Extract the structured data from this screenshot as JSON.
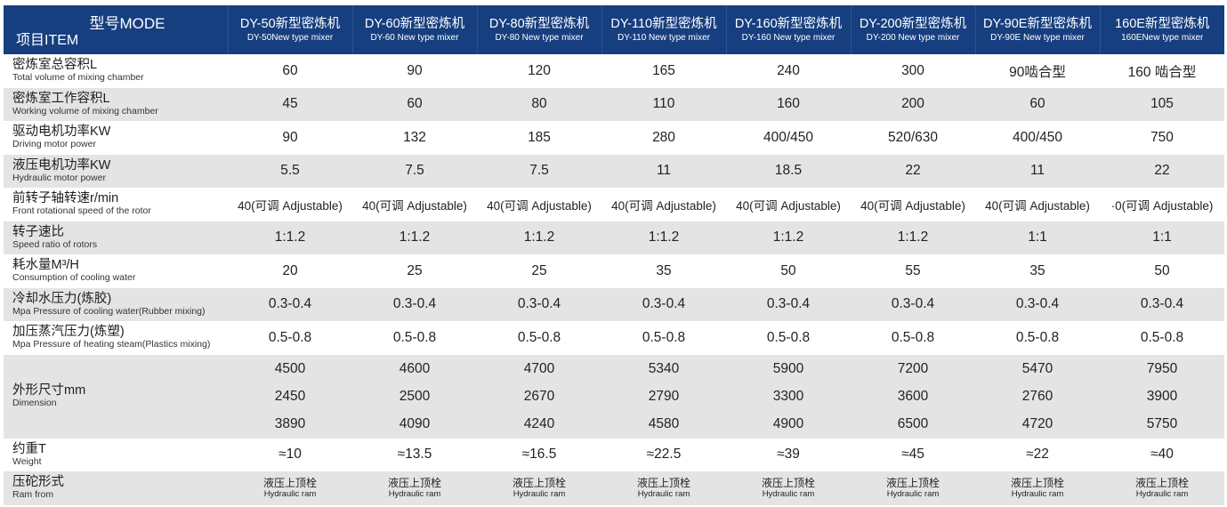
{
  "header": {
    "mode_label": "型号MODE",
    "item_label": "项目ITEM",
    "models": [
      {
        "cn": "DY-50新型密炼机",
        "en": "DY-50New type mixer"
      },
      {
        "cn": "DY-60新型密炼机",
        "en": "DY-60 New type mixer"
      },
      {
        "cn": "DY-80新型密炼机",
        "en": "DY-80 New type mixer"
      },
      {
        "cn": "DY-110新型密炼机",
        "en": "DY-110 New type mixer"
      },
      {
        "cn": "DY-160新型密炼机",
        "en": "DY-160 New type mixer"
      },
      {
        "cn": "DY-200新型密炼机",
        "en": "DY-200 New type mixer"
      },
      {
        "cn": "DY-90E新型密炼机",
        "en": "DY-90E New type mixer"
      },
      {
        "cn": "160E新型密炼机",
        "en": "160ENew type mixer"
      }
    ]
  },
  "rows": [
    {
      "cn": "密炼室总容积L",
      "en": "Total volume of mixing chamber",
      "values": [
        "60",
        "90",
        "120",
        "165",
        "240",
        "300",
        "90啮合型",
        "160 啮合型"
      ]
    },
    {
      "cn": "密炼室工作容积L",
      "en": "Working volume of mixing chamber",
      "values": [
        "45",
        "60",
        "80",
        "110",
        "160",
        "200",
        "60",
        "105"
      ]
    },
    {
      "cn": "驱动电机功率KW",
      "en": "Driving motor power",
      "values": [
        "90",
        "132",
        "185",
        "280",
        "400/450",
        "520/630",
        "400/450",
        "750"
      ]
    },
    {
      "cn": "液压电机功率KW",
      "en": "Hydraulic motor power",
      "values": [
        "5.5",
        "7.5",
        "7.5",
        "11",
        "18.5",
        "22",
        "11",
        "22"
      ]
    },
    {
      "cn": "前转子轴转速r/min",
      "en": "Front rotational speed of the rotor",
      "values": [
        "40(可调 Adjustable)",
        "40(可调 Adjustable)",
        "40(可调 Adjustable)",
        "40(可调 Adjustable)",
        "40(可调 Adjustable)",
        "40(可调 Adjustable)",
        "40(可调 Adjustable)",
        "·0(可调 Adjustable)"
      ]
    },
    {
      "cn": "转子速比",
      "en": "Speed ratio of rotors",
      "values": [
        "1:1.2",
        "1:1.2",
        "1:1.2",
        "1:1.2",
        "1:1.2",
        "1:1.2",
        "1:1",
        "1:1"
      ]
    },
    {
      "cn": "耗水量M³/H",
      "en": "Consumption of cooling water",
      "values": [
        "20",
        "25",
        "25",
        "35",
        "50",
        "55",
        "35",
        "50"
      ]
    },
    {
      "cn": "冷却水压力(炼胶)",
      "en": "Mpa Pressure of cooling water(Rubber mixing)",
      "values": [
        "0.3-0.4",
        "0.3-0.4",
        "0.3-0.4",
        "0.3-0.4",
        "0.3-0.4",
        "0.3-0.4",
        "0.3-0.4",
        "0.3-0.4"
      ]
    },
    {
      "cn": "加压蒸汽压力(炼塑)",
      "en": "Mpa Pressure of heating steam(Plastics mixing)",
      "values": [
        "0.5-0.8",
        "0.5-0.8",
        "0.5-0.8",
        "0.5-0.8",
        "0.5-0.8",
        "0.5-0.8",
        "0.5-0.8",
        "0.5-0.8"
      ]
    }
  ],
  "dimension_row": {
    "cn": "外形尺寸mm",
    "en": "Dimension",
    "values": [
      [
        "4500",
        "2450",
        "3890"
      ],
      [
        "4600",
        "2500",
        "4090"
      ],
      [
        "4700",
        "2670",
        "4240"
      ],
      [
        "5340",
        "2790",
        "4580"
      ],
      [
        "5900",
        "3300",
        "4900"
      ],
      [
        "7200",
        "3600",
        "6500"
      ],
      [
        "5470",
        "2760",
        "4720"
      ],
      [
        "7950",
        "3900",
        "5750"
      ]
    ]
  },
  "weight_row": {
    "cn": "约重T",
    "en": "Weight",
    "values": [
      "≈10",
      "≈13.5",
      "≈16.5",
      "≈22.5",
      "≈39",
      "≈45",
      "≈22",
      "≈40"
    ]
  },
  "ram_row": {
    "cn": "压砣形式",
    "en": "Ram from",
    "value_cn": "液压上顶栓",
    "value_en": "Hydraulic ram"
  },
  "colors": {
    "header_bg": "#173f7f",
    "header_text": "#ffffff",
    "stripe_gray": "#e4e4e4",
    "stripe_white": "#ffffff"
  }
}
